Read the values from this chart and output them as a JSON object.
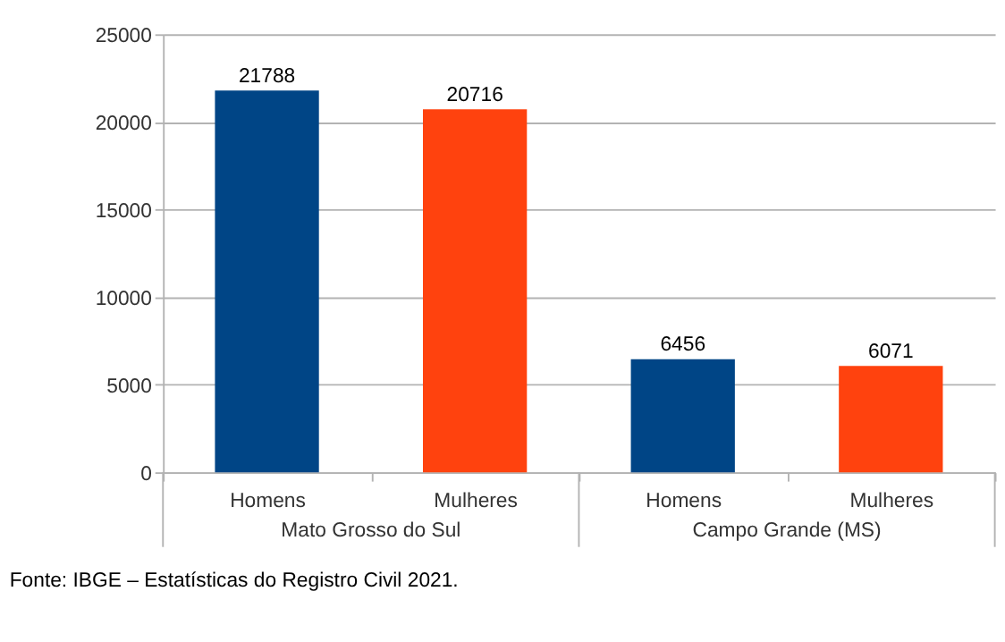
{
  "chart_data": {
    "type": "bar",
    "categories": [
      "Homens",
      "Mulheres",
      "Homens",
      "Mulheres"
    ],
    "values": [
      21788,
      20716,
      6456,
      6071
    ],
    "colors": [
      "#004586",
      "#ff420e",
      "#004586",
      "#ff420e"
    ],
    "data_labels": true,
    "ylim": [
      0,
      25000
    ],
    "yticks": [
      0,
      5000,
      10000,
      15000,
      20000,
      25000
    ],
    "grid": "y",
    "annotations": [
      "Mato Grosso do Sul",
      "Campo Grande (MS)",
      "Fonte: IBGE – Estatísticas do Registro Civil 2021."
    ]
  }
}
